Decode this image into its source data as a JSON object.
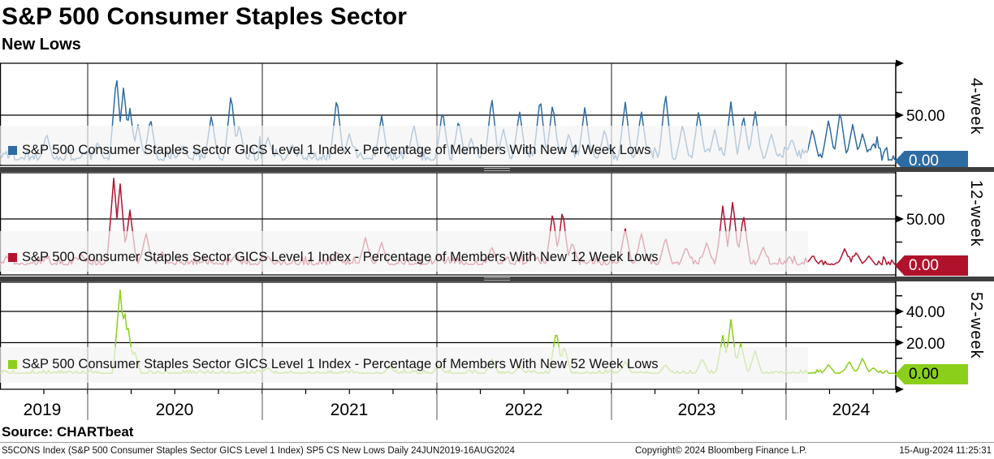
{
  "header": {
    "title": "S&P 500 Consumer Staples Sector",
    "subtitle": "New Lows"
  },
  "source_line": "Source: CHARTbeat",
  "footer": {
    "left": "S5CONS Index (S&P 500 Consumer Staples Sector GICS Level 1 Index) SP5 CS New Lows  Daily 24JUN2019-16AUG2024",
    "center": "Copyright© 2024 Bloomberg Finance L.P.",
    "right": "15-Aug-2024 11:25:31"
  },
  "chart_data": {
    "type": "line",
    "title": "S&P 500 Consumer Staples Sector New Lows",
    "x_range": [
      "24JUN2019",
      "16AUG2024"
    ],
    "x_tick_labels": [
      "2019",
      "2020",
      "2021",
      "2022",
      "2023",
      "2024"
    ],
    "grid": true,
    "panels": [
      {
        "id": "4-week",
        "side_label": "4-week",
        "legend": "S&P 500 Consumer Staples Sector GICS Level 1 Index - Percentage of Members With New 4 Week Lows",
        "color": "#2d6ba3",
        "tag_color": "#2d6ba3",
        "tag_text_color": "#ffffff",
        "last_value": "0.00",
        "ylim": [
          0,
          107
        ],
        "labeled_ticks": [
          {
            "value": 50,
            "label": "50.00"
          }
        ],
        "minor_ticks": [
          25,
          75
        ],
        "spikes": [
          [
            0.052,
            30
          ],
          [
            0.109,
            20
          ],
          [
            0.13,
            95
          ],
          [
            0.138,
            82
          ],
          [
            0.145,
            58
          ],
          [
            0.154,
            40
          ],
          [
            0.168,
            47
          ],
          [
            0.204,
            18
          ],
          [
            0.236,
            50
          ],
          [
            0.258,
            74
          ],
          [
            0.267,
            40
          ],
          [
            0.299,
            26
          ],
          [
            0.326,
            18
          ],
          [
            0.376,
            70
          ],
          [
            0.39,
            30
          ],
          [
            0.426,
            50
          ],
          [
            0.462,
            40
          ],
          [
            0.494,
            56
          ],
          [
            0.512,
            45
          ],
          [
            0.526,
            25
          ],
          [
            0.549,
            70
          ],
          [
            0.562,
            35
          ],
          [
            0.58,
            55
          ],
          [
            0.603,
            70
          ],
          [
            0.617,
            63
          ],
          [
            0.635,
            30
          ],
          [
            0.653,
            60
          ],
          [
            0.675,
            35
          ],
          [
            0.698,
            65
          ],
          [
            0.716,
            55
          ],
          [
            0.743,
            75
          ],
          [
            0.762,
            40
          ],
          [
            0.78,
            55
          ],
          [
            0.798,
            35
          ],
          [
            0.816,
            65
          ],
          [
            0.83,
            50
          ],
          [
            0.843,
            55
          ],
          [
            0.861,
            30
          ],
          [
            0.884,
            25
          ],
          [
            0.907,
            35
          ],
          [
            0.925,
            45
          ],
          [
            0.938,
            55
          ],
          [
            0.952,
            40
          ],
          [
            0.963,
            30
          ],
          [
            0.975,
            20
          ]
        ],
        "noise": {
          "seed": 11,
          "amp": 15,
          "density": 0.55
        }
      },
      {
        "id": "12-week",
        "side_label": "12-week",
        "legend": "S&P 500 Consumer Staples Sector GICS Level 1 Index - Percentage of Members With New 12 Week Lows",
        "color": "#b5122d",
        "tag_color": "#b0122c",
        "tag_text_color": "#ffffff",
        "last_value": "0.00",
        "ylim": [
          0,
          100
        ],
        "labeled_ticks": [
          {
            "value": 50,
            "label": "50.00"
          }
        ],
        "minor_ticks": [
          25,
          75
        ],
        "spikes": [
          [
            0.091,
            12
          ],
          [
            0.127,
            95
          ],
          [
            0.134,
            90
          ],
          [
            0.145,
            60
          ],
          [
            0.163,
            35
          ],
          [
            0.181,
            15
          ],
          [
            0.263,
            12
          ],
          [
            0.299,
            10
          ],
          [
            0.376,
            15
          ],
          [
            0.408,
            30
          ],
          [
            0.426,
            25
          ],
          [
            0.49,
            12
          ],
          [
            0.549,
            20
          ],
          [
            0.594,
            15
          ],
          [
            0.617,
            57
          ],
          [
            0.628,
            60
          ],
          [
            0.639,
            25
          ],
          [
            0.698,
            40
          ],
          [
            0.716,
            35
          ],
          [
            0.743,
            30
          ],
          [
            0.766,
            20
          ],
          [
            0.789,
            25
          ],
          [
            0.807,
            65
          ],
          [
            0.818,
            70
          ],
          [
            0.83,
            55
          ],
          [
            0.852,
            20
          ],
          [
            0.907,
            10
          ],
          [
            0.943,
            18
          ],
          [
            0.956,
            14
          ],
          [
            0.97,
            10
          ]
        ],
        "noise": {
          "seed": 23,
          "amp": 10,
          "density": 0.5
        }
      },
      {
        "id": "52-week",
        "side_label": "52-week",
        "legend": "S&P 500 Consumer Staples Sector GICS Level 1 Index - Percentage of Members With New 52 Week Lows",
        "color": "#8bcf1b",
        "tag_color": "#8bcf1b",
        "tag_text_color": "#000000",
        "last_value": "0.00",
        "ylim": [
          0,
          58
        ],
        "labeled_ticks": [
          {
            "value": 40,
            "label": "40.00"
          },
          {
            "value": 20,
            "label": "20.00"
          }
        ],
        "minor_ticks": [
          10,
          30,
          50
        ],
        "spikes": [
          [
            0.134,
            55
          ],
          [
            0.139,
            42
          ],
          [
            0.143,
            30
          ],
          [
            0.15,
            15
          ],
          [
            0.299,
            4
          ],
          [
            0.435,
            5
          ],
          [
            0.49,
            6
          ],
          [
            0.549,
            10
          ],
          [
            0.58,
            5
          ],
          [
            0.621,
            28
          ],
          [
            0.63,
            18
          ],
          [
            0.698,
            8
          ],
          [
            0.743,
            6
          ],
          [
            0.784,
            10
          ],
          [
            0.807,
            25
          ],
          [
            0.816,
            35
          ],
          [
            0.827,
            20
          ],
          [
            0.843,
            15
          ],
          [
            0.925,
            6
          ],
          [
            0.948,
            8
          ],
          [
            0.963,
            10
          ],
          [
            0.975,
            4
          ]
        ],
        "noise": {
          "seed": 37,
          "amp": 2.6,
          "density": 0.5
        }
      }
    ]
  }
}
